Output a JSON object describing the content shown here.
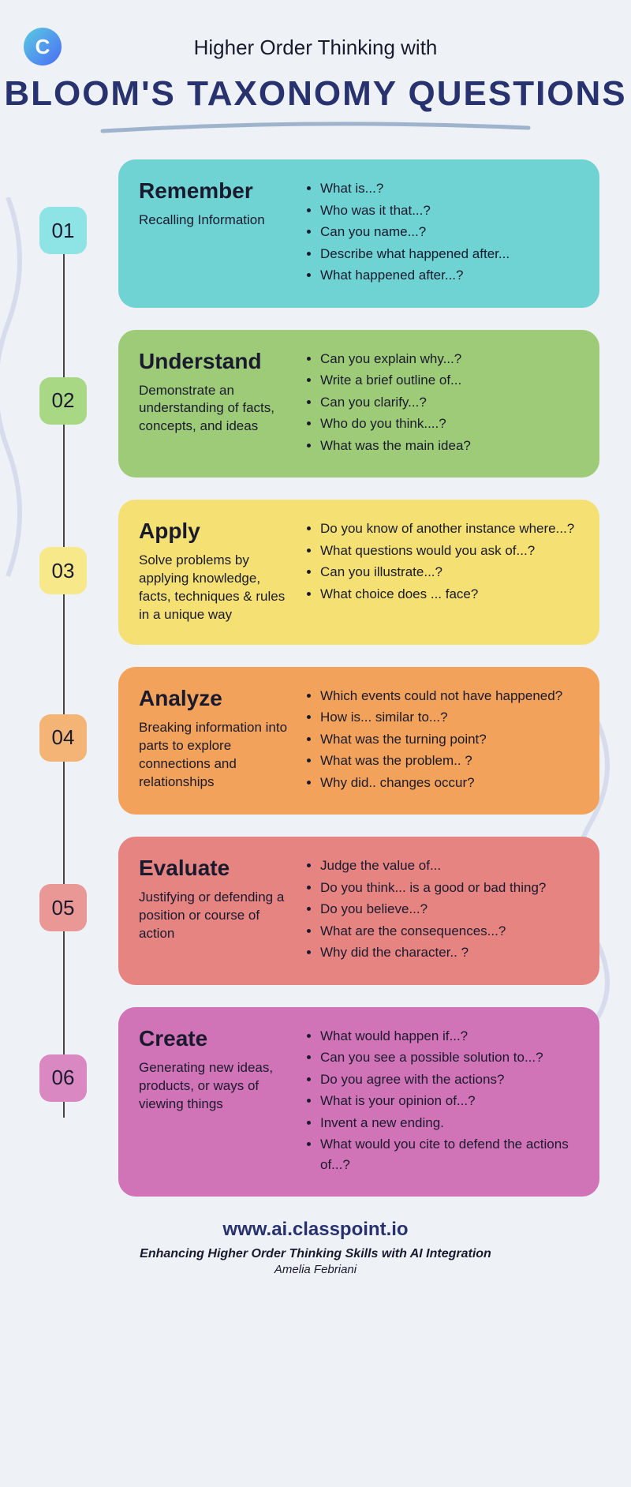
{
  "header": {
    "pretitle": "Higher Order Thinking with",
    "title": "BLOOM'S TAXONOMY QUESTIONS"
  },
  "colors": {
    "background": "#eef1f5",
    "title_color": "#27326f",
    "swoosh_color": "#9fb3cc"
  },
  "levels": [
    {
      "num": "01",
      "title": "Remember",
      "desc": "Recalling Information",
      "card_color": "#6fd2d3",
      "num_color": "#8ee3e4",
      "questions": [
        "What is...?",
        "Who was it that...?",
        "Can you name...?",
        "Describe what happened after...",
        "What happened after...?"
      ]
    },
    {
      "num": "02",
      "title": "Understand",
      "desc": "Demonstrate an understanding of facts, concepts, and ideas",
      "card_color": "#9ecb77",
      "num_color": "#a8d883",
      "questions": [
        "Can you explain why...?",
        "Write a brief outline of...",
        "Can you clarify...?",
        "Who do you think....?",
        "What was the main idea?"
      ]
    },
    {
      "num": "03",
      "title": "Apply",
      "desc": "Solve problems by applying knowledge, facts, techniques & rules in a unique way",
      "card_color": "#f5e173",
      "num_color": "#f7e88a",
      "questions": [
        "Do you know of another instance where...?",
        "What questions would you ask of...?",
        "Can you illustrate...?",
        "What choice does ... face?"
      ]
    },
    {
      "num": "04",
      "title": "Analyze",
      "desc": "Breaking information into parts to explore connections and relationships",
      "card_color": "#f2a25a",
      "num_color": "#f4b476",
      "questions": [
        "Which events could not have happened?",
        "How is... similar to...?",
        "What was the turning point?",
        "What was the problem.. ?",
        "Why did.. changes occur?"
      ]
    },
    {
      "num": "05",
      "title": "Evaluate",
      "desc": "Justifying or defending a position or course of action",
      "card_color": "#e68482",
      "num_color": "#ea9896",
      "questions": [
        "Judge the value of...",
        "Do you think... is a good or bad thing?",
        "Do you believe...?",
        "What are the consequences...?",
        "Why did the character.. ?"
      ]
    },
    {
      "num": "06",
      "title": "Create",
      "desc": "Generating new ideas, products, or ways of viewing things",
      "card_color": "#d173b7",
      "num_color": "#d988c2",
      "questions": [
        "What would happen if...?",
        "Can you see a possible solution to...?",
        "Do you agree with the actions?",
        "What is your opinion of...?",
        "Invent a new ending.",
        "What would you cite to defend the actions of...?"
      ]
    }
  ],
  "footer": {
    "url": "www.ai.classpoint.io",
    "tagline": "Enhancing Higher Order Thinking Skills with AI Integration",
    "author": "Amelia Febriani"
  }
}
